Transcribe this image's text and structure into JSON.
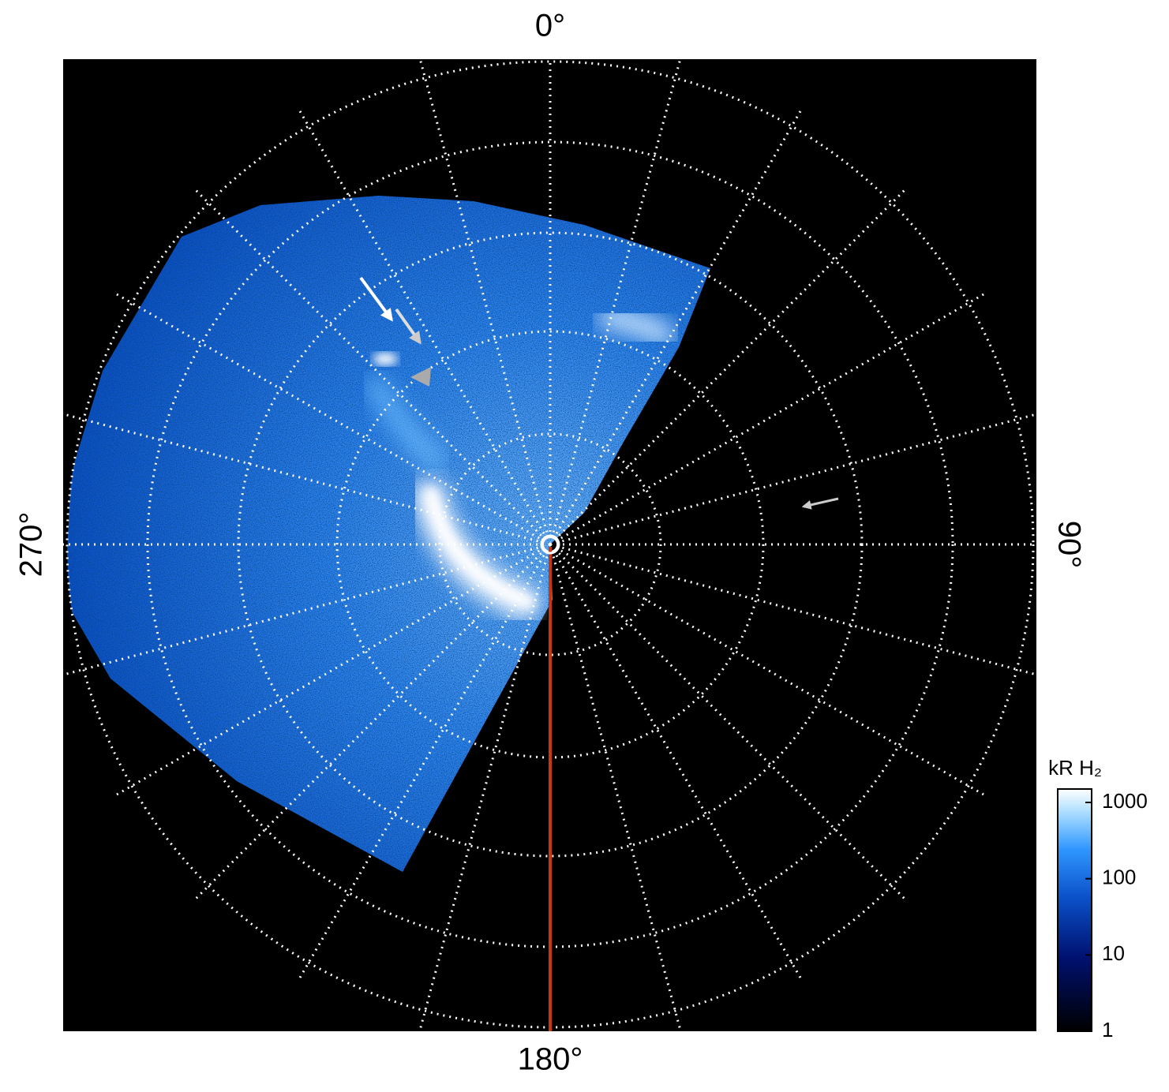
{
  "directions": [
    {
      "value": 0,
      "label": "0°"
    },
    {
      "value": 90,
      "label": "90°"
    },
    {
      "value": 180,
      "label": "180°"
    },
    {
      "value": 270,
      "label": "270°"
    }
  ],
  "colorbar": {
    "title": "kR H₂",
    "scale": "log",
    "lim": [
      1,
      1500
    ],
    "ticks": [
      1,
      10,
      100,
      1000
    ]
  }
}
